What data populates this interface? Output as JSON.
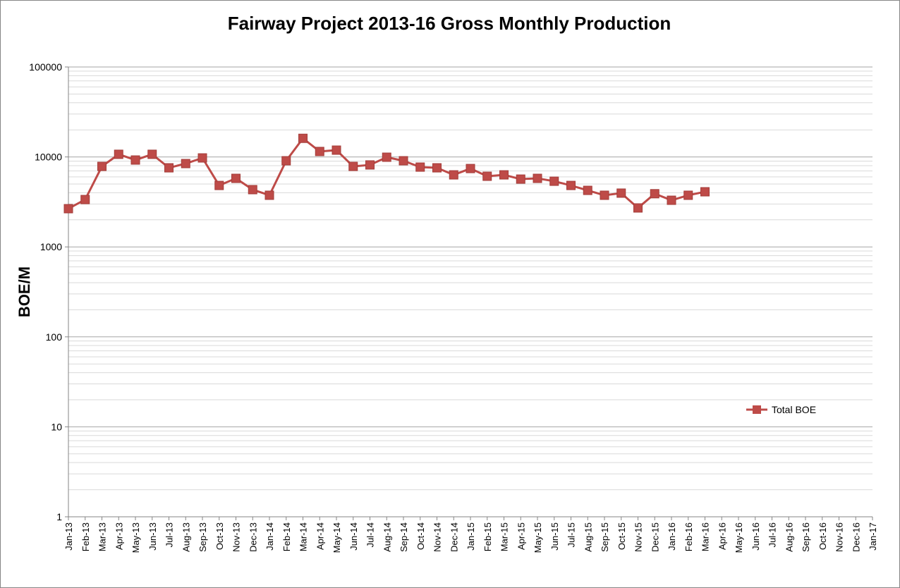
{
  "chart_data": {
    "type": "line",
    "title": "Fairway Project 2013-16 Gross Monthly Production",
    "y_label": "BOE/M",
    "categories": [
      "Jan-13",
      "Feb-13",
      "Mar-13",
      "Apr-13",
      "May-13",
      "Jun-13",
      "Jul-13",
      "Aug-13",
      "Sep-13",
      "Oct-13",
      "Nov-13",
      "Dec-13",
      "Jan-14",
      "Feb-14",
      "Mar-14",
      "Apr-14",
      "May-14",
      "Jun-14",
      "Jul-14",
      "Aug-14",
      "Sep-14",
      "Oct-14",
      "Nov-14",
      "Dec-14",
      "Jan-15",
      "Feb-15",
      "Mar-15",
      "Apr-15",
      "May-15",
      "Jun-15",
      "Jul-15",
      "Aug-15",
      "Sep-15",
      "Oct-15",
      "Nov-15",
      "Dec-15",
      "Jan-16",
      "Feb-16",
      "Mar-16",
      "Apr-16",
      "May-16",
      "Jun-16",
      "Jul-16",
      "Aug-16",
      "Sep-16",
      "Oct-16",
      "Nov-16",
      "Dec-16",
      "Jan-17"
    ],
    "series": [
      {
        "name": "Total BOE",
        "color": "#be4b48",
        "values": [
          2660,
          3360,
          7850,
          10700,
          9240,
          10700,
          7570,
          8440,
          9750,
          4820,
          5780,
          4330,
          3750,
          9070,
          16100,
          11500,
          11900,
          7850,
          8150,
          9930,
          9070,
          7710,
          7570,
          6320,
          7430,
          6100,
          6320,
          5670,
          5780,
          5370,
          4820,
          4250,
          3750,
          3960,
          2710,
          3900,
          3300,
          3750,
          4100,
          null,
          null,
          null,
          null,
          null,
          null,
          null,
          null,
          null,
          null
        ]
      }
    ],
    "ylim": [
      1,
      100000
    ],
    "yticks": [
      1,
      10,
      100,
      1000,
      10000,
      100000
    ],
    "log_y": true,
    "grid": true,
    "minor_grid": true,
    "legend": "right"
  }
}
